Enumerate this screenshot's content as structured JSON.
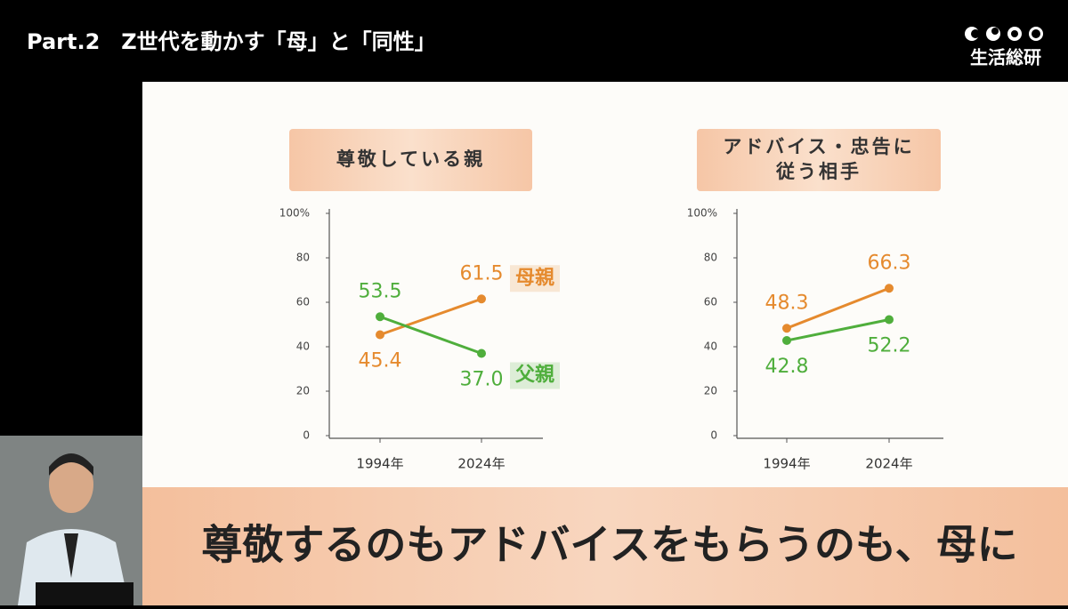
{
  "header": {
    "title": "Part.2　Z世代を動かす「母」と「同性」",
    "logo": "生活総研"
  },
  "chart_data": [
    {
      "type": "line",
      "title": [
        "尊敬している親"
      ],
      "categories": [
        "1994年",
        "2024年"
      ],
      "series": [
        {
          "name": "母親",
          "color": "#e58a2e",
          "values": [
            45.4,
            61.5
          ],
          "value_labels": [
            "45.4",
            "61.5"
          ]
        },
        {
          "name": "父親",
          "color": "#4fae3c",
          "values": [
            53.5,
            37.0
          ],
          "value_labels": [
            "53.5",
            "37.0"
          ]
        }
      ],
      "ylim": [
        0,
        100
      ],
      "yticks": [
        0,
        20,
        40,
        60,
        80,
        {
          "value": 100,
          "label": "100%"
        }
      ]
    },
    {
      "type": "line",
      "title": [
        "アドバイス・忠告に",
        "従う相手"
      ],
      "categories": [
        "1994年",
        "2024年"
      ],
      "series": [
        {
          "color": "#e58a2e",
          "values": [
            48.3,
            66.3
          ],
          "value_labels": [
            "48.3",
            "66.3"
          ]
        },
        {
          "color": "#4fae3c",
          "values": [
            42.8,
            52.2
          ],
          "value_labels": [
            "42.8",
            "52.2"
          ]
        }
      ],
      "ylim": [
        0,
        100
      ],
      "yticks": [
        0,
        20,
        40,
        60,
        80,
        {
          "value": 100,
          "label": "100%"
        }
      ]
    }
  ],
  "caption": "尊敬するのもアドバイスをもらうのも、母に"
}
